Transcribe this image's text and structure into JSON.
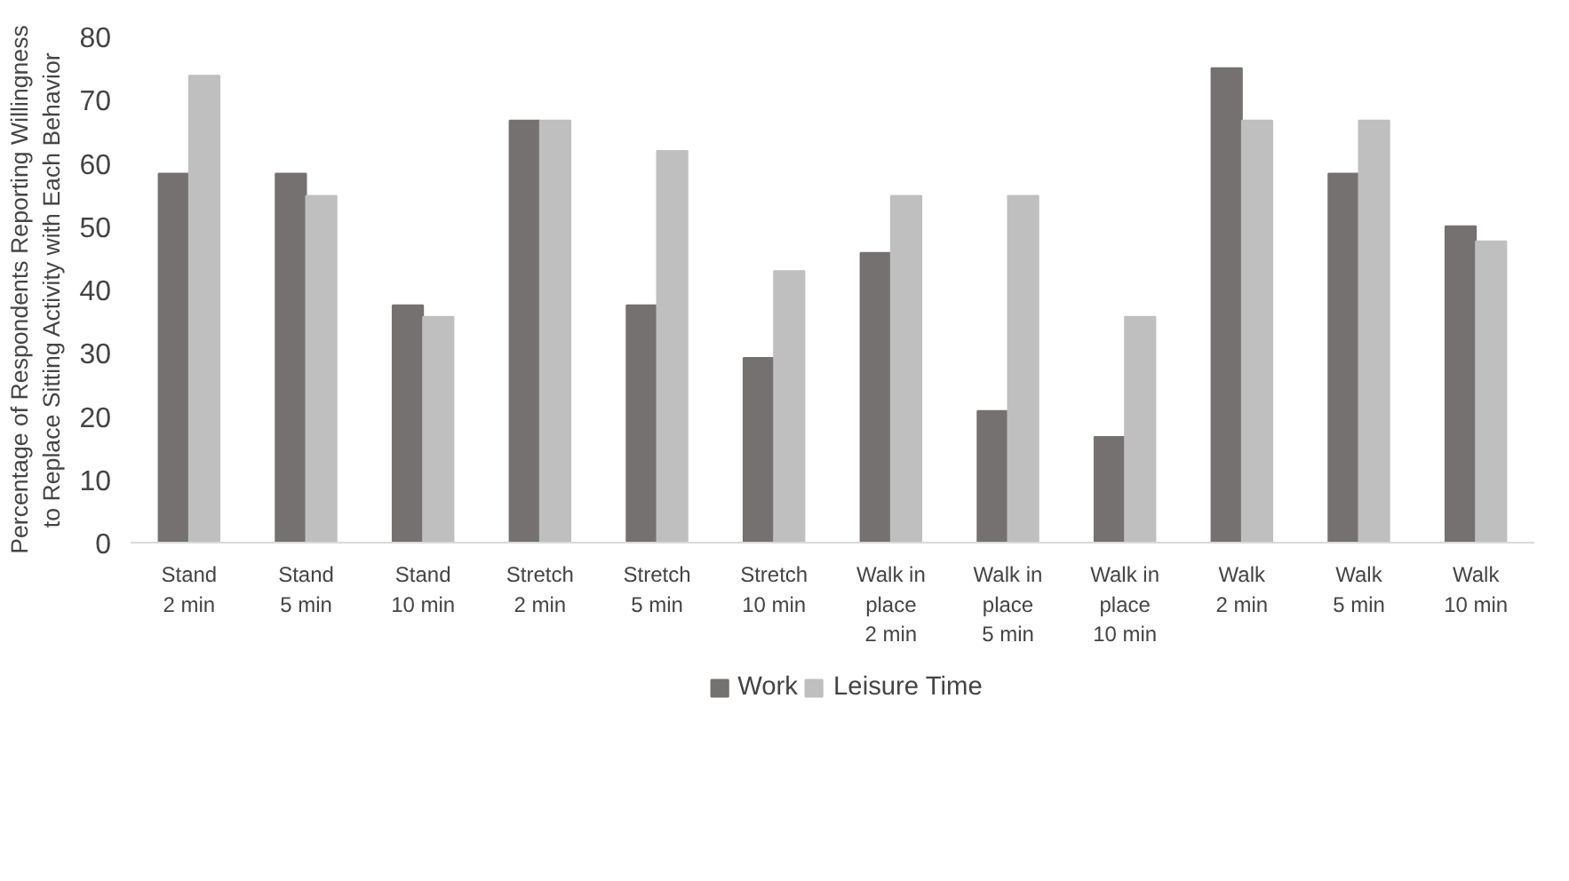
{
  "chart_data": {
    "type": "bar",
    "ylabel": "Percentage of Respondents Reporting Willingness\nto Replace Sitting Activity with Each Behavior",
    "categories": [
      "Stand\n2 min",
      "Stand\n5 min",
      "Stand\n10 min",
      "Stretch\n2 min",
      "Stretch\n5 min",
      "Stretch\n10 min",
      "Walk in\nplace\n2 min",
      "Walk in\nplace\n5 min",
      "Walk in\nplace\n10 min",
      "Walk\n2 min",
      "Walk\n5 min",
      "Walk\n10 min"
    ],
    "series": [
      {
        "name": "Work",
        "color": "#767171",
        "values": [
          58.3,
          58.3,
          37.5,
          66.7,
          37.5,
          29.2,
          45.8,
          20.8,
          16.7,
          75.0,
          58.3,
          50.0
        ]
      },
      {
        "name": "Leisure Time",
        "color": "#bfbfbf",
        "values": [
          73.8,
          54.8,
          35.7,
          66.7,
          61.9,
          42.9,
          54.8,
          54.8,
          35.7,
          66.7,
          66.7,
          47.6
        ]
      }
    ],
    "ylim": [
      0,
      80
    ],
    "yticks": [
      0,
      10,
      20,
      30,
      40,
      50,
      60,
      70,
      80
    ],
    "grid": false,
    "legend": "bottom"
  }
}
